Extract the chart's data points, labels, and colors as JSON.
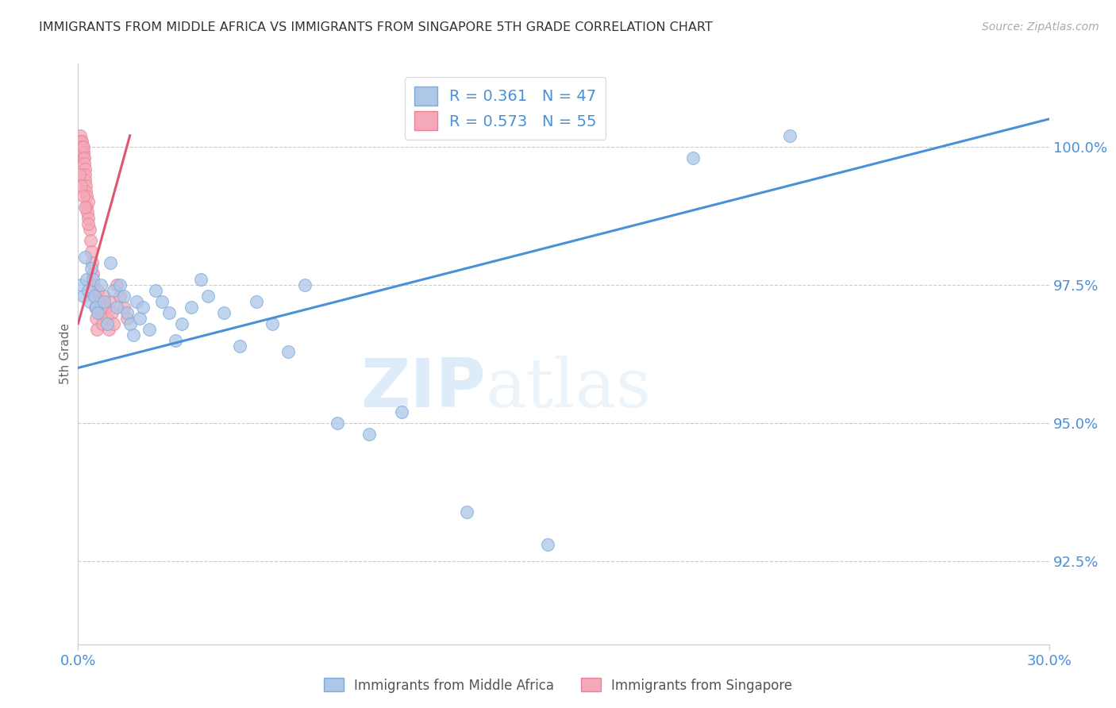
{
  "title": "IMMIGRANTS FROM MIDDLE AFRICA VS IMMIGRANTS FROM SINGAPORE 5TH GRADE CORRELATION CHART",
  "source": "Source: ZipAtlas.com",
  "xlabel_bottom_left": "0.0%",
  "xlabel_bottom_right": "30.0%",
  "ylabel": "5th Grade",
  "ytick_labels": [
    "92.5%",
    "95.0%",
    "97.5%",
    "100.0%"
  ],
  "ytick_values": [
    92.5,
    95.0,
    97.5,
    100.0
  ],
  "xlim": [
    0.0,
    30.0
  ],
  "ylim": [
    91.0,
    101.5
  ],
  "legend_blue_label": "Immigrants from Middle Africa",
  "legend_pink_label": "Immigrants from Singapore",
  "R_blue": 0.361,
  "N_blue": 47,
  "R_pink": 0.573,
  "N_pink": 55,
  "blue_color": "#aec6e8",
  "pink_color": "#f4a8b8",
  "blue_line_color": "#4a90d9",
  "pink_line_color": "#e05570",
  "watermark_zip": "ZIP",
  "watermark_atlas": "atlas",
  "blue_line_x": [
    0.0,
    30.0
  ],
  "blue_line_y": [
    96.0,
    100.5
  ],
  "pink_line_x": [
    0.0,
    1.6
  ],
  "pink_line_y": [
    96.8,
    100.2
  ],
  "blue_scatter_x": [
    0.1,
    0.15,
    0.2,
    0.25,
    0.3,
    0.35,
    0.4,
    0.45,
    0.5,
    0.55,
    0.6,
    0.7,
    0.8,
    0.9,
    1.0,
    1.1,
    1.2,
    1.3,
    1.4,
    1.5,
    1.6,
    1.7,
    1.8,
    1.9,
    2.0,
    2.2,
    2.4,
    2.6,
    2.8,
    3.0,
    3.2,
    3.5,
    3.8,
    4.0,
    4.5,
    5.0,
    5.5,
    6.0,
    6.5,
    7.0,
    8.0,
    9.0,
    10.0,
    12.0,
    14.5,
    19.0,
    22.0
  ],
  "blue_scatter_y": [
    97.5,
    97.3,
    98.0,
    97.6,
    97.4,
    97.2,
    97.8,
    97.6,
    97.3,
    97.1,
    97.0,
    97.5,
    97.2,
    96.8,
    97.9,
    97.4,
    97.1,
    97.5,
    97.3,
    97.0,
    96.8,
    96.6,
    97.2,
    96.9,
    97.1,
    96.7,
    97.4,
    97.2,
    97.0,
    96.5,
    96.8,
    97.1,
    97.6,
    97.3,
    97.0,
    96.4,
    97.2,
    96.8,
    96.3,
    97.5,
    95.0,
    94.8,
    95.2,
    93.4,
    92.8,
    99.8,
    100.2
  ],
  "pink_scatter_x": [
    0.03,
    0.05,
    0.07,
    0.08,
    0.09,
    0.1,
    0.11,
    0.12,
    0.13,
    0.14,
    0.15,
    0.16,
    0.17,
    0.18,
    0.19,
    0.2,
    0.21,
    0.22,
    0.23,
    0.24,
    0.25,
    0.27,
    0.28,
    0.3,
    0.32,
    0.35,
    0.38,
    0.4,
    0.42,
    0.45,
    0.48,
    0.5,
    0.52,
    0.55,
    0.58,
    0.6,
    0.65,
    0.7,
    0.75,
    0.8,
    0.85,
    0.9,
    0.95,
    1.0,
    1.05,
    1.1,
    1.2,
    1.3,
    1.4,
    1.5,
    0.05,
    0.1,
    0.15,
    0.2,
    0.3
  ],
  "pink_scatter_y": [
    100.0,
    100.1,
    100.2,
    100.1,
    100.0,
    99.9,
    100.0,
    100.1,
    100.0,
    99.9,
    99.8,
    99.9,
    100.0,
    99.8,
    99.7,
    99.6,
    99.5,
    99.4,
    99.3,
    99.2,
    99.1,
    98.9,
    98.8,
    99.0,
    98.7,
    98.5,
    98.3,
    98.1,
    97.9,
    97.7,
    97.5,
    97.3,
    97.1,
    96.9,
    96.7,
    97.4,
    97.2,
    97.0,
    96.8,
    97.3,
    97.1,
    96.9,
    96.7,
    97.2,
    97.0,
    96.8,
    97.5,
    97.3,
    97.1,
    96.9,
    99.5,
    99.3,
    99.1,
    98.9,
    98.6
  ]
}
